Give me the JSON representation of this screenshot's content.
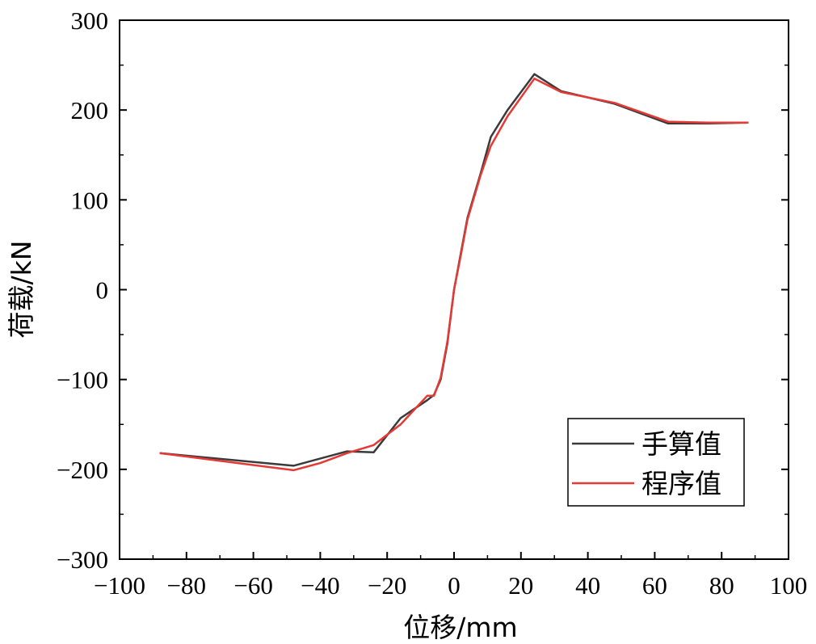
{
  "chart_data": {
    "type": "line",
    "xlabel": "位移/mm",
    "ylabel": "荷载/kN",
    "xlim": [
      -100,
      100
    ],
    "ylim": [
      -300,
      300
    ],
    "x_ticks": [
      -100,
      -80,
      -60,
      -40,
      -20,
      0,
      20,
      40,
      60,
      80,
      100
    ],
    "y_ticks": [
      -300,
      -200,
      -100,
      0,
      100,
      200,
      300
    ],
    "grid": false,
    "legend_position": "bottom-right",
    "series": [
      {
        "name": "手算值",
        "color": "#3a3a3a",
        "points": [
          [
            -88,
            -182
          ],
          [
            -48,
            -196
          ],
          [
            -32,
            -180
          ],
          [
            -24,
            -181
          ],
          [
            -16,
            -143
          ],
          [
            -8,
            -123
          ],
          [
            -6,
            -117
          ],
          [
            -4,
            -100
          ],
          [
            -2,
            -60
          ],
          [
            0,
            0
          ],
          [
            2,
            40
          ],
          [
            4,
            80
          ],
          [
            8,
            130
          ],
          [
            11,
            170
          ],
          [
            16,
            200
          ],
          [
            24,
            240
          ],
          [
            32,
            221
          ],
          [
            48,
            207
          ],
          [
            64,
            185
          ],
          [
            76,
            185
          ],
          [
            88,
            186
          ]
        ]
      },
      {
        "name": "程序值",
        "color": "#e53935",
        "points": [
          [
            -88,
            -182
          ],
          [
            -48,
            -201
          ],
          [
            -40,
            -193
          ],
          [
            -32,
            -182
          ],
          [
            -24,
            -173
          ],
          [
            -16,
            -150
          ],
          [
            -8,
            -118
          ],
          [
            -6,
            -118
          ],
          [
            -4,
            -98
          ],
          [
            -2,
            -58
          ],
          [
            0,
            0
          ],
          [
            2,
            38
          ],
          [
            4,
            78
          ],
          [
            8,
            128
          ],
          [
            11,
            160
          ],
          [
            16,
            193
          ],
          [
            24,
            235
          ],
          [
            32,
            220
          ],
          [
            48,
            208
          ],
          [
            64,
            187
          ],
          [
            76,
            186
          ],
          [
            88,
            186
          ]
        ]
      }
    ]
  }
}
